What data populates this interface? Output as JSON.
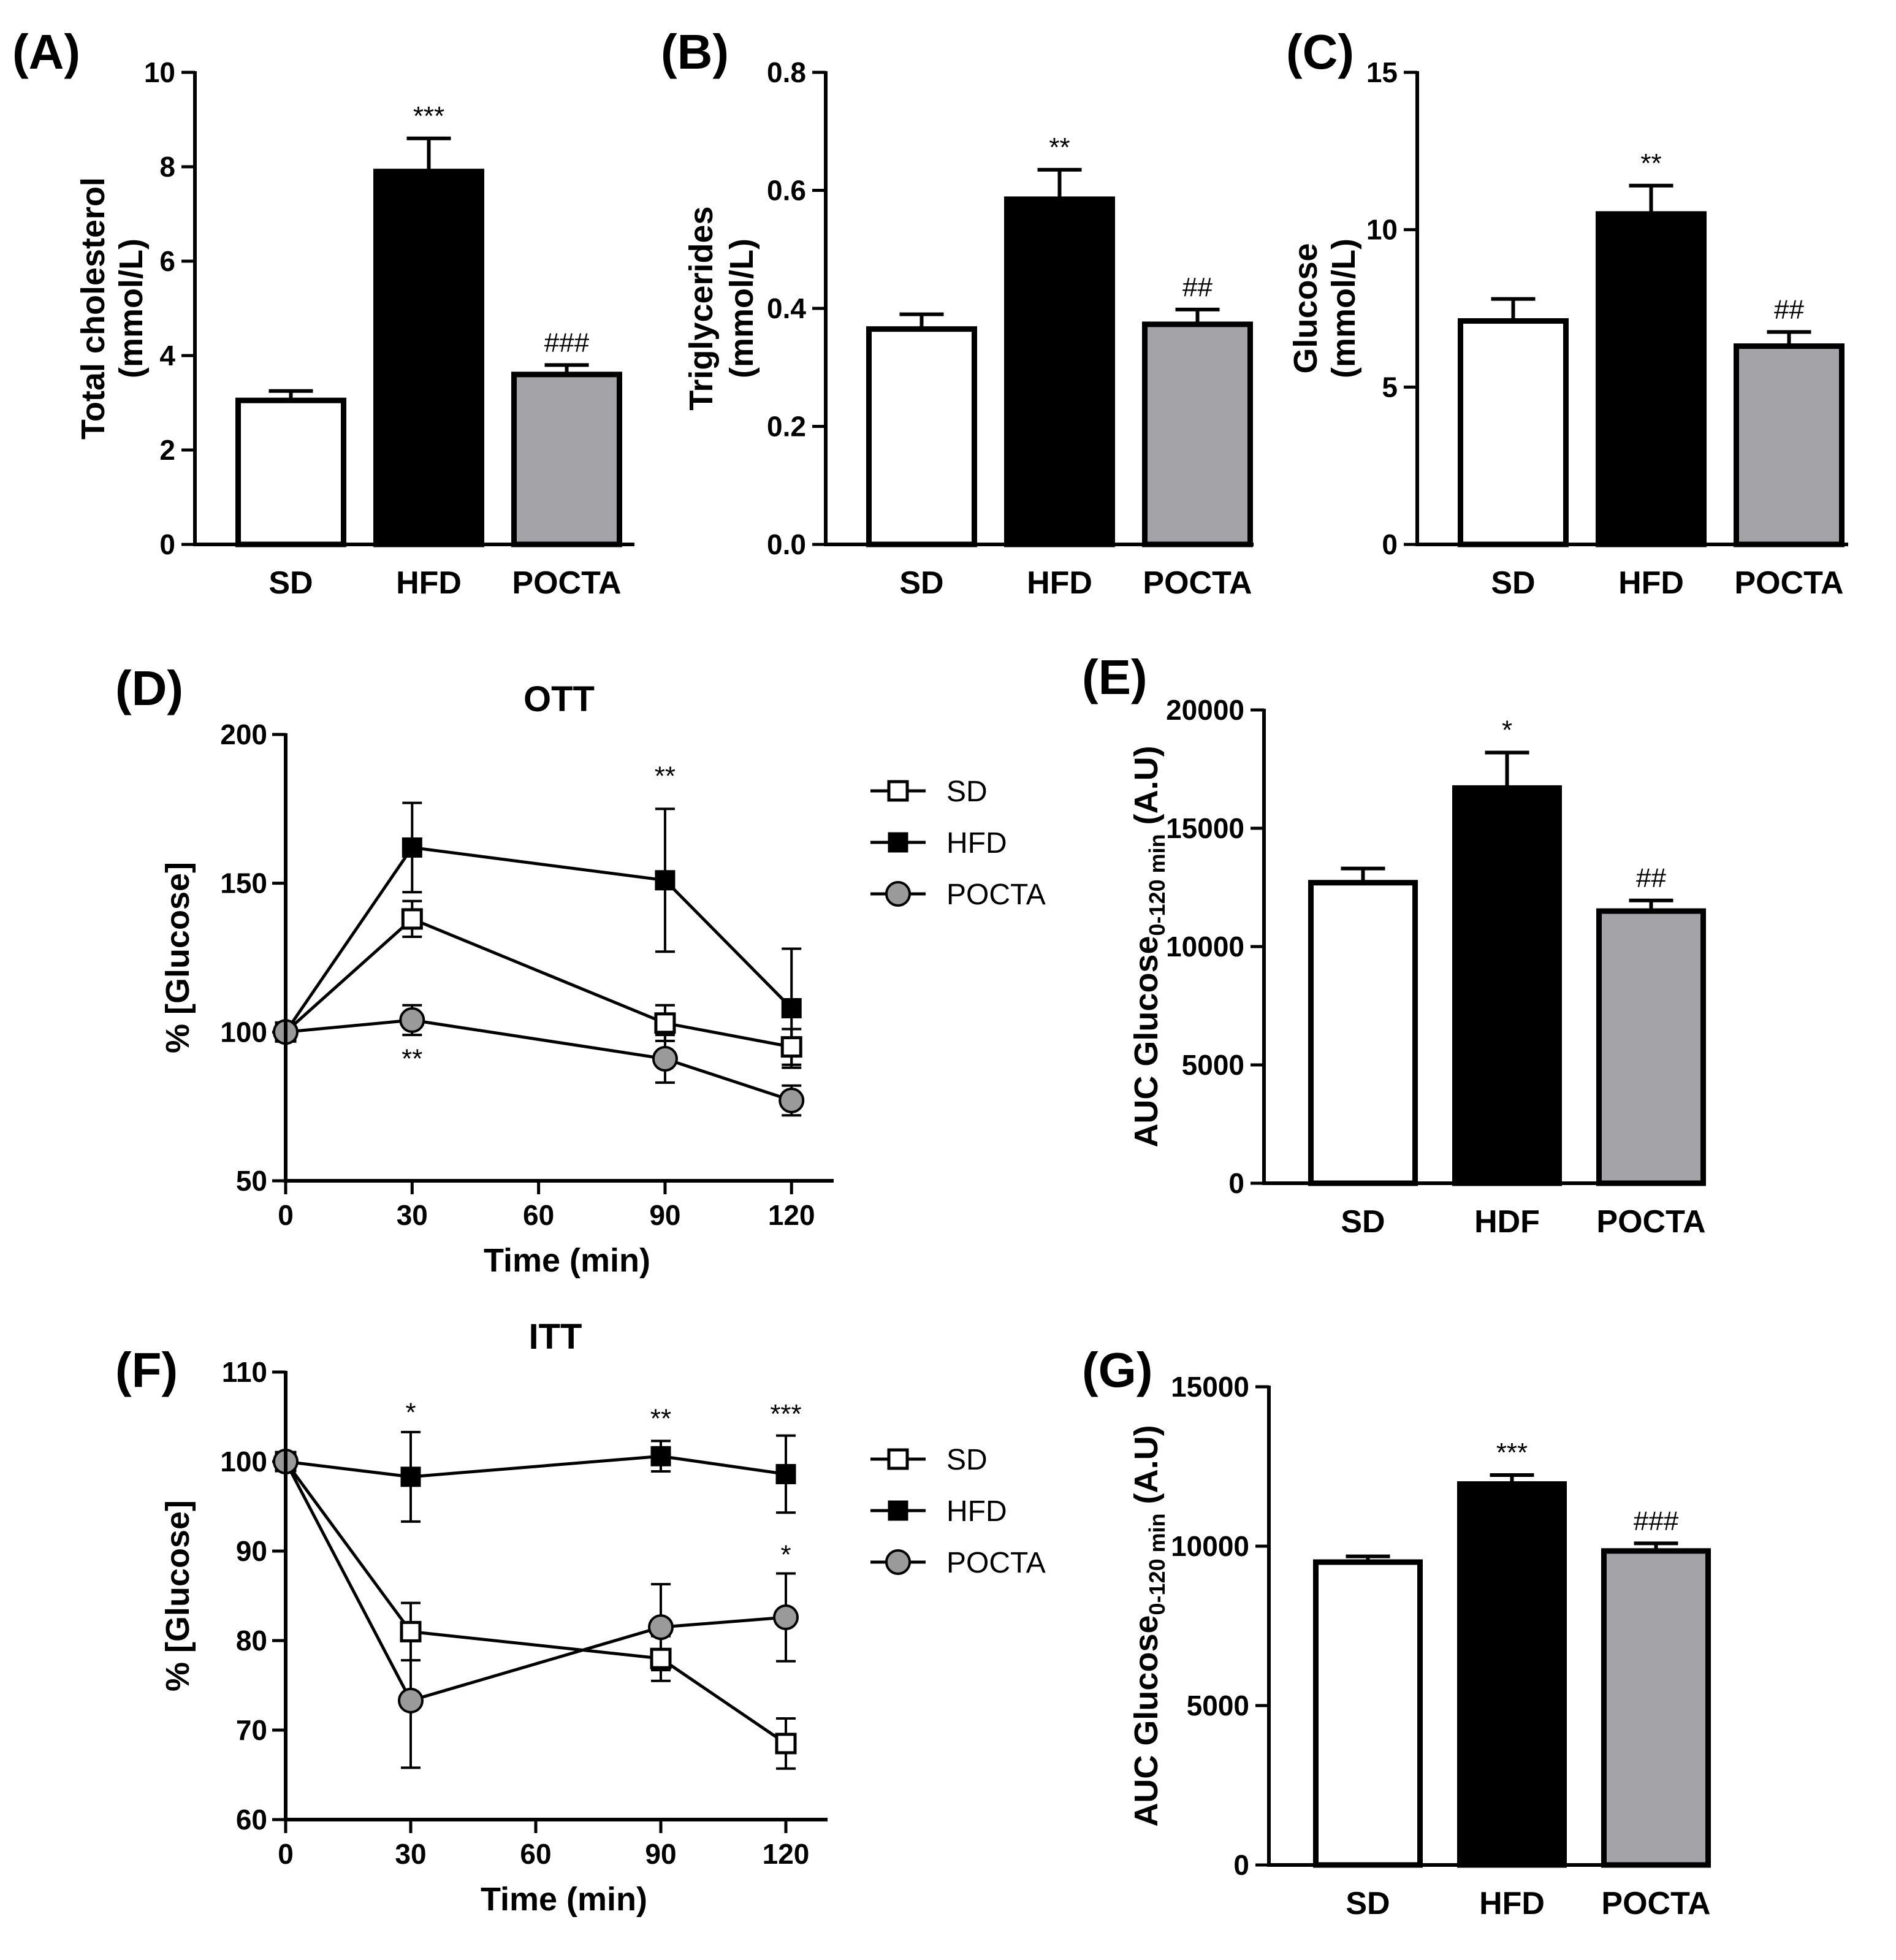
{
  "chart_data": [
    {
      "id": "A",
      "type": "bar",
      "panel_label": "(A)",
      "title": "",
      "ylabel_lines": [
        "Total cholesterol",
        "(mmol/L)"
      ],
      "xlabel": "",
      "categories": [
        "SD",
        "HFD",
        "POCTA"
      ],
      "values": [
        3.05,
        7.9,
        3.6
      ],
      "errors": [
        0.2,
        0.7,
        0.2
      ],
      "fills": [
        "#ffffff",
        "#000000",
        "#a3a3a8"
      ],
      "annotations": [
        "",
        "***",
        "###"
      ],
      "ylim": [
        0,
        10
      ],
      "yticks": [
        0,
        2,
        4,
        6,
        8,
        10
      ],
      "ytick_labels": [
        "0",
        "2",
        "4",
        "6",
        "8",
        "10"
      ]
    },
    {
      "id": "B",
      "type": "bar",
      "panel_label": "(B)",
      "title": "",
      "ylabel_lines": [
        "Triglycerides",
        "(mmol/L)"
      ],
      "xlabel": "",
      "categories": [
        "SD",
        "HFD",
        "POCTA"
      ],
      "values": [
        0.365,
        0.585,
        0.373
      ],
      "errors": [
        0.025,
        0.05,
        0.025
      ],
      "fills": [
        "#ffffff",
        "#000000",
        "#a3a3a8"
      ],
      "annotations": [
        "",
        "**",
        "##"
      ],
      "ylim": [
        0,
        0.8
      ],
      "yticks": [
        0,
        0.2,
        0.4,
        0.6,
        0.8
      ],
      "ytick_labels": [
        "0.0",
        "0.2",
        "0.4",
        "0.6",
        "0.8"
      ]
    },
    {
      "id": "C",
      "type": "bar",
      "panel_label": "(C)",
      "title": "",
      "ylabel_lines": [
        "Glucose",
        "(mmol/L)"
      ],
      "xlabel": "",
      "categories": [
        "SD",
        "HFD",
        "POCTA"
      ],
      "values": [
        7.1,
        10.5,
        6.3
      ],
      "errors": [
        0.7,
        0.9,
        0.45
      ],
      "fills": [
        "#ffffff",
        "#000000",
        "#a3a3a8"
      ],
      "annotations": [
        "",
        "**",
        "##"
      ],
      "ylim": [
        0,
        15
      ],
      "yticks": [
        0,
        5,
        10,
        15
      ],
      "ytick_labels": [
        "0",
        "5",
        "10",
        "15"
      ]
    },
    {
      "id": "D",
      "type": "line",
      "panel_label": "(D)",
      "title": "OTT",
      "ylabel": "%  [Glucose]",
      "xlabel": "Time (min)",
      "x": [
        0,
        30,
        90,
        120
      ],
      "xlim": [
        0,
        130
      ],
      "xticks": [
        0,
        30,
        60,
        90,
        120
      ],
      "ylim": [
        50,
        200
      ],
      "yticks": [
        50,
        100,
        150,
        200
      ],
      "series": [
        {
          "name": "SD",
          "marker": "square-open",
          "values": [
            100,
            138,
            103,
            95
          ],
          "errors": [
            0,
            6,
            6,
            6
          ]
        },
        {
          "name": "HFD",
          "marker": "square-filled",
          "values": [
            100,
            162,
            151,
            108
          ],
          "errors": [
            0,
            15,
            24,
            20
          ]
        },
        {
          "name": "POCTA",
          "marker": "circle-gray",
          "values": [
            100,
            104,
            91,
            77
          ],
          "errors": [
            0,
            5,
            8,
            5
          ]
        }
      ],
      "annotations": [
        {
          "x": 90,
          "y": 183,
          "text": "**"
        },
        {
          "x": 30,
          "y": 88,
          "text": "**"
        }
      ],
      "legend_position": "right"
    },
    {
      "id": "E",
      "type": "bar",
      "panel_label": "(E)",
      "title": "",
      "ylabel": "AUC Glucose",
      "ylabel_sub": "0-120 min",
      "ylabel_suffix": " (A.U)",
      "xlabel": "",
      "categories": [
        "SD",
        "HDF",
        "POCTA"
      ],
      "values": [
        12700,
        16700,
        11500
      ],
      "errors": [
        600,
        1500,
        450
      ],
      "fills": [
        "#ffffff",
        "#000000",
        "#a3a3a8"
      ],
      "annotations": [
        "",
        "*",
        "##"
      ],
      "ylim": [
        0,
        20000
      ],
      "yticks": [
        0,
        5000,
        10000,
        15000,
        20000
      ],
      "ytick_labels": [
        "0",
        "5000",
        "10000",
        "15000",
        "20000"
      ]
    },
    {
      "id": "F",
      "type": "line",
      "panel_label": "(F)",
      "title": "ITT",
      "ylabel": "%  [Glucose]",
      "xlabel": "Time (min)",
      "x": [
        0,
        30,
        90,
        120
      ],
      "xlim": [
        0,
        130
      ],
      "xticks": [
        0,
        30,
        60,
        90,
        120
      ],
      "ylim": [
        60,
        110
      ],
      "yticks": [
        60,
        70,
        80,
        90,
        100,
        110
      ],
      "series": [
        {
          "name": "SD",
          "marker": "square-open",
          "values": [
            100,
            81,
            78,
            68.5
          ],
          "errors": [
            0,
            3.2,
            2.5,
            2.8
          ]
        },
        {
          "name": "HFD",
          "marker": "square-filled",
          "values": [
            100,
            98.3,
            100.6,
            98.6
          ],
          "errors": [
            0,
            5,
            1.7,
            4.3
          ]
        },
        {
          "name": "POCTA",
          "marker": "circle-gray",
          "values": [
            100,
            73.3,
            81.5,
            82.6
          ],
          "errors": [
            0,
            7.5,
            4.8,
            4.9
          ]
        }
      ],
      "annotations": [
        {
          "x": 30,
          "y": 104.5,
          "text": "*"
        },
        {
          "x": 90,
          "y": 103.8,
          "text": "**"
        },
        {
          "x": 120,
          "y": 104.3,
          "text": "***"
        },
        {
          "x": 120,
          "y": 88.6,
          "text": "*"
        }
      ],
      "legend_position": "right"
    },
    {
      "id": "G",
      "type": "bar",
      "panel_label": "(G)",
      "title": "",
      "ylabel": "AUC Glucose",
      "ylabel_sub": "0-120 min",
      "ylabel_suffix": " (A.U)",
      "xlabel": "",
      "categories": [
        "SD",
        "HFD",
        "POCTA"
      ],
      "values": [
        9500,
        11950,
        9850
      ],
      "errors": [
        180,
        280,
        240
      ],
      "fills": [
        "#ffffff",
        "#000000",
        "#a3a3a8"
      ],
      "annotations": [
        "",
        "***",
        "###"
      ],
      "ylim": [
        0,
        15000
      ],
      "yticks": [
        0,
        5000,
        10000,
        15000
      ],
      "ytick_labels": [
        "0",
        "5000",
        "10000",
        "15000"
      ]
    }
  ]
}
